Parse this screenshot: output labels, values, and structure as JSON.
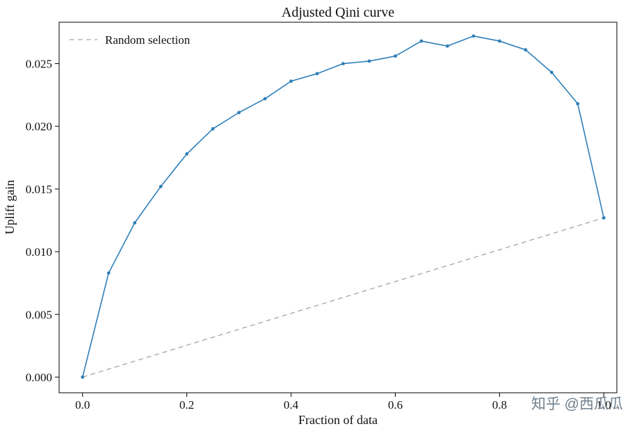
{
  "page": {
    "watermark": "知乎 @西瓜瓜"
  },
  "chart_data": {
    "type": "line",
    "title": "Adjusted Qini curve",
    "xlabel": "Fraction of data",
    "ylabel": "Uplift gain",
    "grid": false,
    "x_range": [
      -0.045,
      1.025
    ],
    "y_range": [
      -0.00125,
      0.0283
    ],
    "x_ticks": [
      {
        "value": 0.0,
        "label": "0.0"
      },
      {
        "value": 0.2,
        "label": "0.2"
      },
      {
        "value": 0.4,
        "label": "0.4"
      },
      {
        "value": 0.6,
        "label": "0.6"
      },
      {
        "value": 0.8,
        "label": "0.8"
      },
      {
        "value": 1.0,
        "label": "1.0"
      }
    ],
    "y_ticks": [
      {
        "value": 0.0,
        "label": "0.000"
      },
      {
        "value": 0.005,
        "label": "0.005"
      },
      {
        "value": 0.01,
        "label": "0.010"
      },
      {
        "value": 0.015,
        "label": "0.015"
      },
      {
        "value": 0.02,
        "label": "0.020"
      },
      {
        "value": 0.025,
        "label": "0.025"
      }
    ],
    "legend": {
      "label": "Random selection",
      "position": "upper left",
      "line_style": "dashed",
      "line_color": "#a6a6a6"
    },
    "series": [
      {
        "name": "Random selection",
        "color": "#a6a6a6",
        "dashed": true,
        "marker": false,
        "line_width": 1.3,
        "x": [
          0.0,
          1.0
        ],
        "y": [
          0.0,
          0.0127
        ]
      },
      {
        "name": "Adjusted Qini curve",
        "color": "#2e7fb8",
        "dashed": false,
        "marker": true,
        "line_width": 1.6,
        "x": [
          0.0,
          0.05,
          0.1,
          0.15,
          0.2,
          0.25,
          0.3,
          0.35,
          0.4,
          0.45,
          0.5,
          0.55,
          0.6,
          0.65,
          0.7,
          0.75,
          0.8,
          0.85,
          0.9,
          0.95,
          1.0
        ],
        "y": [
          0.0,
          0.0083,
          0.0123,
          0.0152,
          0.0178,
          0.0198,
          0.0211,
          0.0222,
          0.0236,
          0.0242,
          0.025,
          0.0252,
          0.0256,
          0.0268,
          0.0264,
          0.0272,
          0.0268,
          0.0261,
          0.0243,
          0.0218,
          0.0127
        ]
      }
    ]
  }
}
